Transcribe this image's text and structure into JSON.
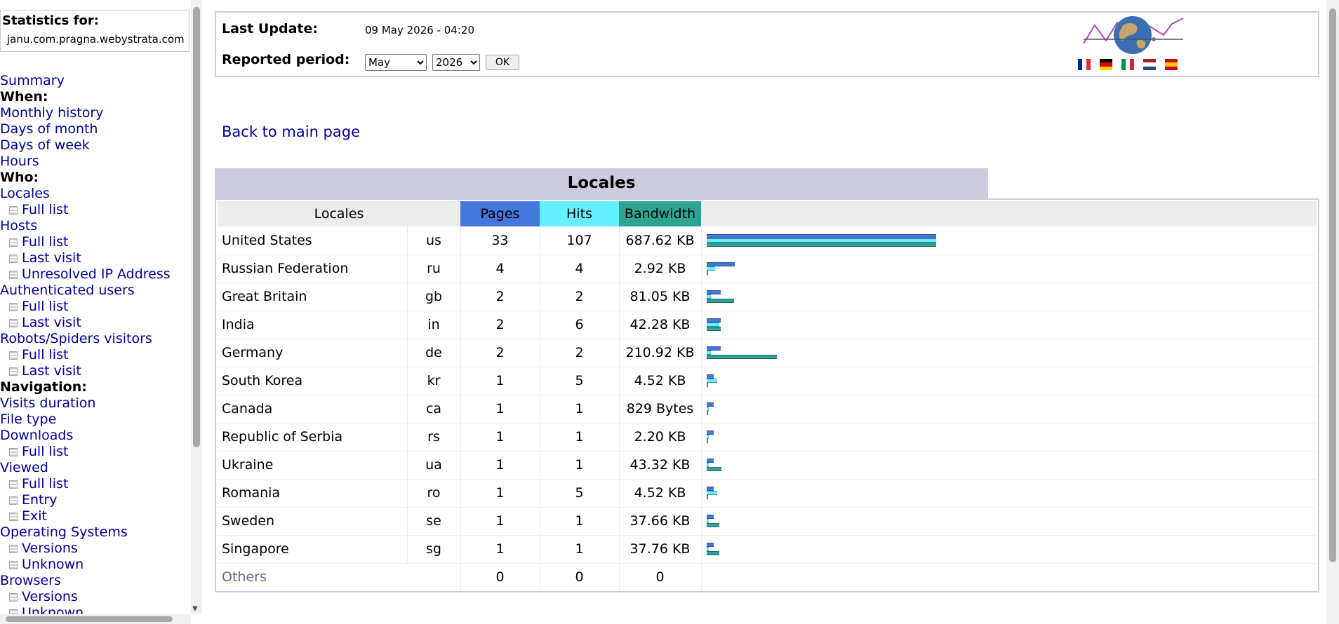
{
  "menu": {
    "stats_label": "Statistics for:",
    "site": "janu.com.pragna.webystrata.com",
    "items": [
      {
        "label": "Summary",
        "type": "link"
      },
      {
        "label": "When:",
        "type": "head"
      },
      {
        "label": "Monthly history",
        "type": "link"
      },
      {
        "label": "Days of month",
        "type": "link"
      },
      {
        "label": "Days of week",
        "type": "link"
      },
      {
        "label": "Hours",
        "type": "link"
      },
      {
        "label": "Who:",
        "type": "head"
      },
      {
        "label": "Locales",
        "type": "link"
      },
      {
        "label": "Full list",
        "type": "sub"
      },
      {
        "label": "Hosts",
        "type": "link"
      },
      {
        "label": "Full list",
        "type": "sub"
      },
      {
        "label": "Last visit",
        "type": "sub"
      },
      {
        "label": "Unresolved IP Address",
        "type": "sub"
      },
      {
        "label": "Authenticated users",
        "type": "link"
      },
      {
        "label": "Full list",
        "type": "sub"
      },
      {
        "label": "Last visit",
        "type": "sub"
      },
      {
        "label": "Robots/Spiders visitors",
        "type": "link"
      },
      {
        "label": "Full list",
        "type": "sub"
      },
      {
        "label": "Last visit",
        "type": "sub"
      },
      {
        "label": "Navigation:",
        "type": "head"
      },
      {
        "label": "Visits duration",
        "type": "link"
      },
      {
        "label": "File type",
        "type": "link"
      },
      {
        "label": "Downloads",
        "type": "link"
      },
      {
        "label": "Full list",
        "type": "sub"
      },
      {
        "label": "Viewed",
        "type": "link"
      },
      {
        "label": "Full list",
        "type": "sub"
      },
      {
        "label": "Entry",
        "type": "sub"
      },
      {
        "label": "Exit",
        "type": "sub"
      },
      {
        "label": "Operating Systems",
        "type": "link"
      },
      {
        "label": "Versions",
        "type": "sub"
      },
      {
        "label": "Unknown",
        "type": "sub"
      },
      {
        "label": "Browsers",
        "type": "link"
      },
      {
        "label": "Versions",
        "type": "sub"
      },
      {
        "label": "Unknown",
        "type": "sub"
      }
    ]
  },
  "header": {
    "last_update_label": "Last Update:",
    "last_update_value": "09 May 2026 - 04:20",
    "reported_period_label": "Reported period:",
    "month_selected": "May",
    "year_selected": "2026",
    "ok_label": "OK",
    "logo_icon": "globe-logo-icon",
    "flags": [
      {
        "name": "french-flag-icon",
        "colors": [
          "#002395",
          "#ffffff",
          "#ed2939"
        ],
        "dir": "v"
      },
      {
        "name": "german-flag-icon",
        "colors": [
          "#000000",
          "#dd0000",
          "#ffce00"
        ],
        "dir": "h"
      },
      {
        "name": "italian-flag-icon",
        "colors": [
          "#009246",
          "#ffffff",
          "#ce2b37"
        ],
        "dir": "v"
      },
      {
        "name": "dutch-flag-icon",
        "colors": [
          "#ae1c28",
          "#ffffff",
          "#21468b"
        ],
        "dir": "h"
      },
      {
        "name": "spanish-flag-icon",
        "colors": [
          "#c60b1e",
          "#ffc400",
          "#c60b1e"
        ],
        "dir": "h"
      }
    ]
  },
  "back_link": "Back to main page",
  "locales": {
    "title": "Locales",
    "columns": {
      "locales": "Locales",
      "pages": "Pages",
      "hits": "Hits",
      "bandwidth": "Bandwidth"
    },
    "colors": {
      "pages": "#4477dd",
      "hits": "#66f0ff",
      "bandwidth": "#2ea495",
      "header": "#ccccdd"
    },
    "rows": [
      {
        "country": "United States",
        "code": "us",
        "pages": 33,
        "hits": 107,
        "bandwidth": "687.62 KB",
        "bw_kb": 687.62
      },
      {
        "country": "Russian Federation",
        "code": "ru",
        "pages": 4,
        "hits": 4,
        "bandwidth": "2.92 KB",
        "bw_kb": 2.92
      },
      {
        "country": "Great Britain",
        "code": "gb",
        "pages": 2,
        "hits": 2,
        "bandwidth": "81.05 KB",
        "bw_kb": 81.05
      },
      {
        "country": "India",
        "code": "in",
        "pages": 2,
        "hits": 6,
        "bandwidth": "42.28 KB",
        "bw_kb": 42.28
      },
      {
        "country": "Germany",
        "code": "de",
        "pages": 2,
        "hits": 2,
        "bandwidth": "210.92 KB",
        "bw_kb": 210.92
      },
      {
        "country": "South Korea",
        "code": "kr",
        "pages": 1,
        "hits": 5,
        "bandwidth": "4.52 KB",
        "bw_kb": 4.52
      },
      {
        "country": "Canada",
        "code": "ca",
        "pages": 1,
        "hits": 1,
        "bandwidth": "829 Bytes",
        "bw_kb": 0.81
      },
      {
        "country": "Republic of Serbia",
        "code": "rs",
        "pages": 1,
        "hits": 1,
        "bandwidth": "2.20 KB",
        "bw_kb": 2.2
      },
      {
        "country": "Ukraine",
        "code": "ua",
        "pages": 1,
        "hits": 1,
        "bandwidth": "43.32 KB",
        "bw_kb": 43.32
      },
      {
        "country": "Romania",
        "code": "ro",
        "pages": 1,
        "hits": 5,
        "bandwidth": "4.52 KB",
        "bw_kb": 4.52
      },
      {
        "country": "Sweden",
        "code": "se",
        "pages": 1,
        "hits": 1,
        "bandwidth": "37.66 KB",
        "bw_kb": 37.66
      },
      {
        "country": "Singapore",
        "code": "sg",
        "pages": 1,
        "hits": 1,
        "bandwidth": "37.76 KB",
        "bw_kb": 37.76
      }
    ],
    "others": {
      "label": "Others",
      "pages": "0",
      "hits": "0",
      "bandwidth": "0"
    }
  }
}
